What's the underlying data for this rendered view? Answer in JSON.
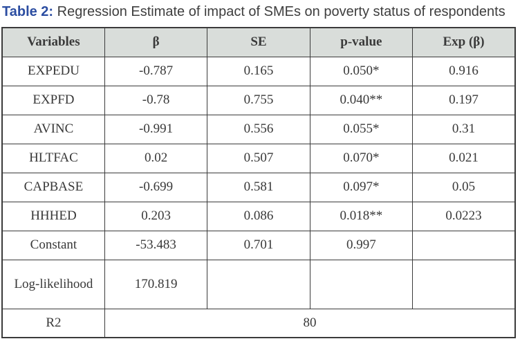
{
  "title": {
    "label": "Table 2:",
    "text": " Regression Estimate of impact of SMEs on poverty status of respondents"
  },
  "table": {
    "headers": [
      "Variables",
      "β",
      "SE",
      "p-value",
      "Exp (β)"
    ],
    "rows": [
      {
        "cells": [
          "EXPEDU",
          "-0.787",
          "0.165",
          "0.050*",
          "0.916"
        ]
      },
      {
        "cells": [
          "EXPFD",
          "-0.78",
          "0.755",
          "0.040**",
          "0.197"
        ]
      },
      {
        "cells": [
          "AVINC",
          "-0.991",
          "0.556",
          "0.055*",
          "0.31"
        ]
      },
      {
        "cells": [
          "HLTFAC",
          "0.02",
          "0.507",
          "0.070*",
          "0.021"
        ]
      },
      {
        "cells": [
          "CAPBASE",
          "-0.699",
          "0.581",
          "0.097*",
          "0.05"
        ]
      },
      {
        "cells": [
          "HHHED",
          "0.203",
          "0.086",
          "0.018**",
          "0.0223"
        ]
      },
      {
        "cells": [
          "Constant",
          "-53.483",
          "0.701",
          "0.997",
          ""
        ]
      },
      {
        "cells": [
          "Log-likelihood",
          "170.819",
          "",
          "",
          ""
        ]
      },
      {
        "cells": [
          "R2",
          "80"
        ]
      }
    ],
    "colors": {
      "header_background": "#d9ddda",
      "border": "#3a3a3a",
      "text": "#383838",
      "title_label_blue": "#2b4da1",
      "title_text": "#3e3e3e"
    }
  }
}
